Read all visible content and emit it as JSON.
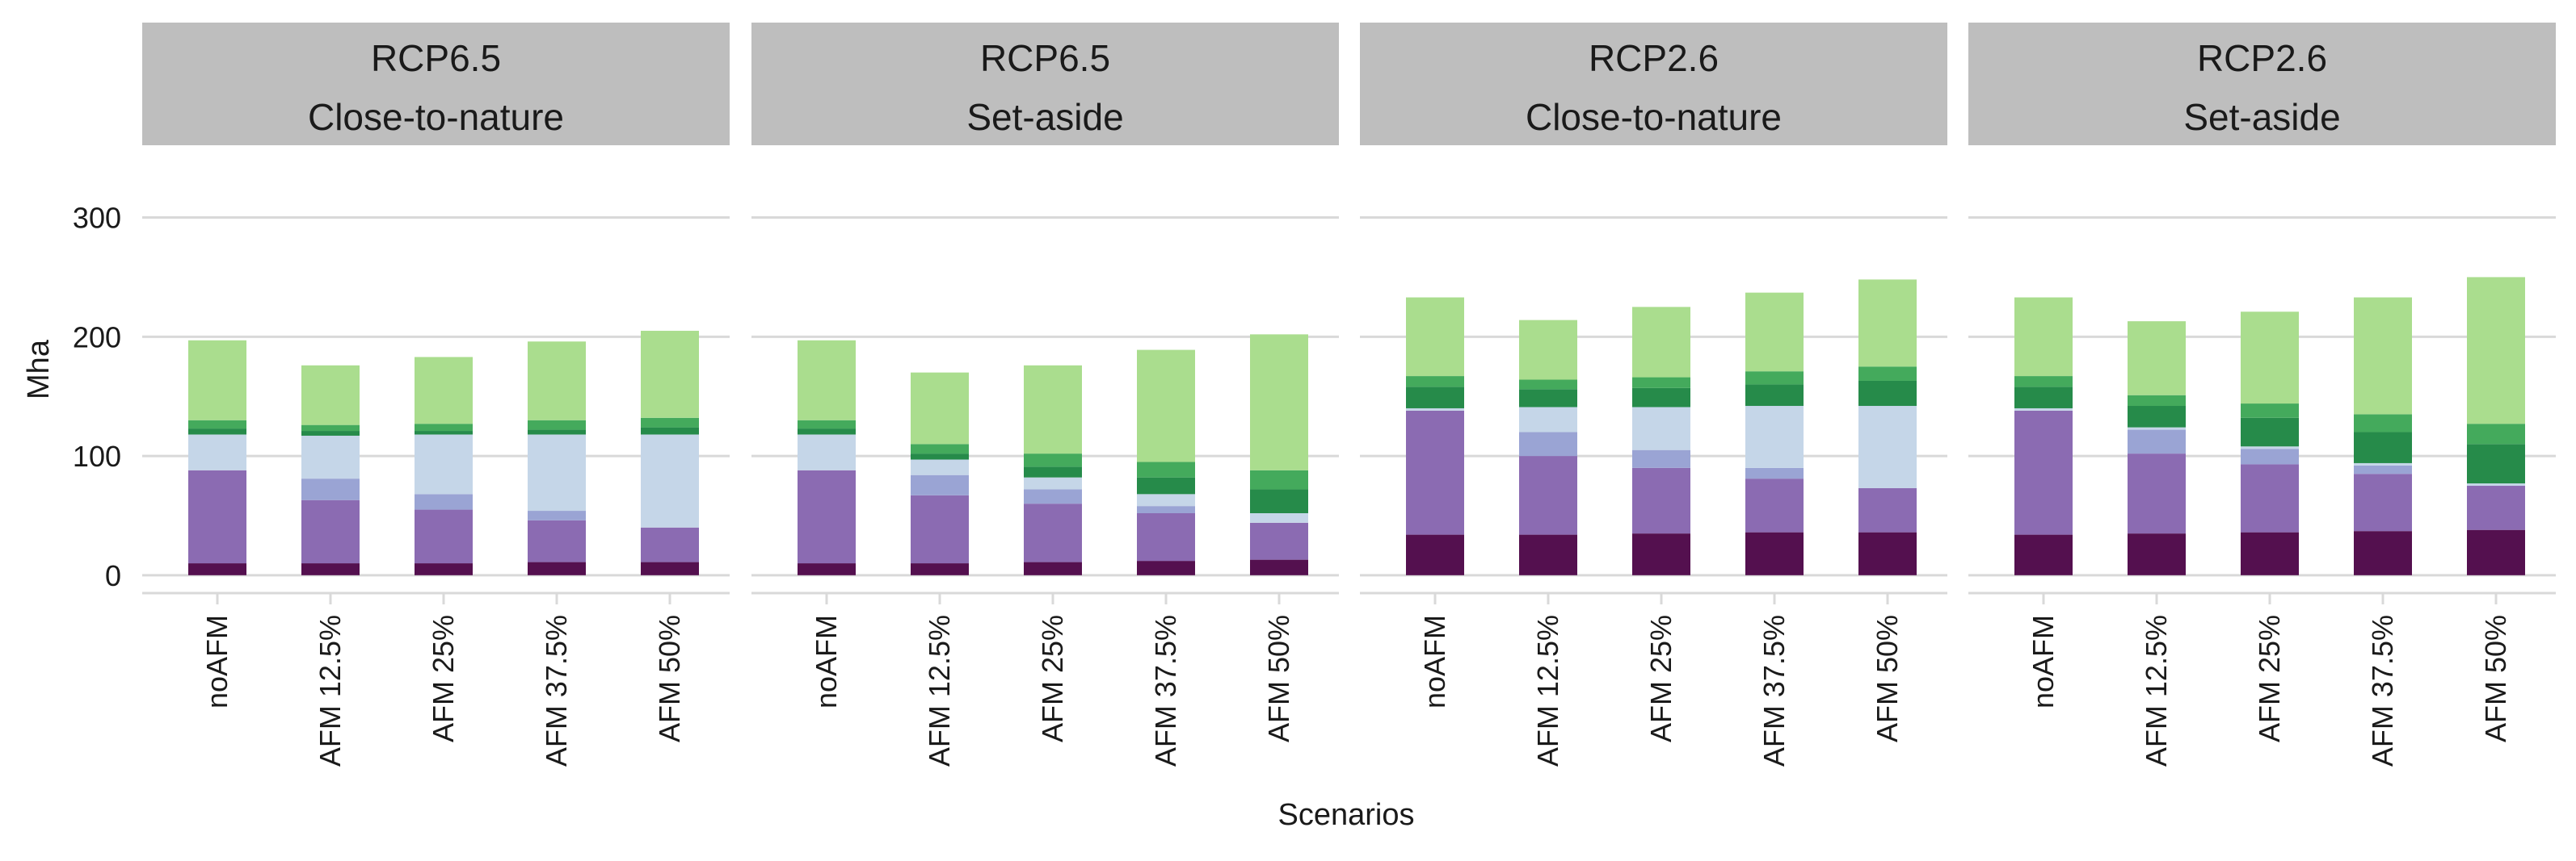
{
  "chart_data": {
    "type": "bar",
    "stacked": true,
    "xlabel": "Scenarios",
    "ylabel": "Mha",
    "ylim": [
      -15,
      320
    ],
    "yticks": [
      0,
      100,
      200,
      300
    ],
    "grid": true,
    "legend": "none",
    "categories": [
      "noAFM",
      "AFM 12.5%",
      "AFM 25%",
      "AFM 37.5%",
      "AFM 50%"
    ],
    "layer_colors": [
      "#54104f",
      "#8b6bb2",
      "#9aa4d4",
      "#c5d6e8",
      "#268b4a",
      "#44aa5c",
      "#aadd8e"
    ],
    "panels": [
      {
        "strip": [
          "RCP6.5",
          "Close-to-nature"
        ],
        "stacks": [
          [
            10,
            78,
            0,
            30,
            5,
            7,
            67
          ],
          [
            10,
            53,
            18,
            36,
            4,
            5,
            50
          ],
          [
            10,
            45,
            13,
            50,
            3,
            6,
            56
          ],
          [
            11,
            35,
            8,
            64,
            4,
            8,
            66
          ],
          [
            11,
            29,
            0,
            78,
            6,
            8,
            73
          ]
        ]
      },
      {
        "strip": [
          "RCP6.5",
          "Set-aside"
        ],
        "stacks": [
          [
            10,
            78,
            0,
            30,
            5,
            7,
            67
          ],
          [
            10,
            57,
            17,
            13,
            5,
            8,
            60
          ],
          [
            11,
            49,
            12,
            10,
            9,
            11,
            74
          ],
          [
            12,
            40,
            6,
            10,
            14,
            13,
            94
          ],
          [
            13,
            31,
            0,
            8,
            20,
            16,
            114
          ]
        ]
      },
      {
        "strip": [
          "RCP2.6",
          "Close-to-nature"
        ],
        "stacks": [
          [
            34,
            104,
            0,
            2,
            18,
            9,
            66
          ],
          [
            34,
            66,
            20,
            21,
            15,
            8,
            50
          ],
          [
            35,
            55,
            15,
            36,
            16,
            9,
            59
          ],
          [
            36,
            45,
            9,
            52,
            18,
            11,
            66
          ],
          [
            36,
            37,
            0,
            69,
            21,
            12,
            73
          ]
        ]
      },
      {
        "strip": [
          "RCP2.6",
          "Set-aside"
        ],
        "stacks": [
          [
            34,
            104,
            0,
            2,
            18,
            9,
            66
          ],
          [
            35,
            67,
            20,
            2,
            18,
            9,
            62
          ],
          [
            36,
            57,
            13,
            2,
            24,
            12,
            77
          ],
          [
            37,
            48,
            7,
            2,
            26,
            15,
            98
          ],
          [
            38,
            37,
            0,
            2,
            33,
            17,
            123
          ]
        ]
      }
    ]
  }
}
